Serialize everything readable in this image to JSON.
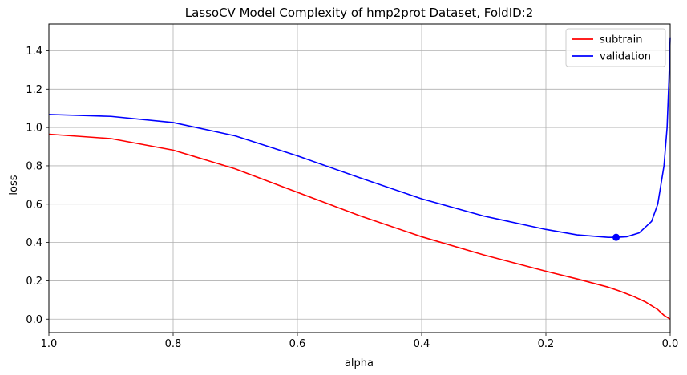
{
  "chart_data": {
    "type": "line",
    "title": "LassoCV Model Complexity of hmp2prot Dataset, FoldID:2",
    "xlabel": "alpha",
    "ylabel": "loss",
    "xlim": [
      1.0,
      0.0
    ],
    "ylim": [
      -0.07,
      1.54
    ],
    "x_inverted": true,
    "grid": true,
    "legend_position": "top-right",
    "x_ticks": [
      1.0,
      0.8,
      0.6,
      0.4,
      0.2,
      0.0
    ],
    "x_tick_labels": [
      "1.0",
      "0.8",
      "0.6",
      "0.4",
      "0.2",
      "0.0"
    ],
    "y_ticks": [
      0.0,
      0.2,
      0.4,
      0.6,
      0.8,
      1.0,
      1.2,
      1.4
    ],
    "y_tick_labels": [
      "0.0",
      "0.2",
      "0.4",
      "0.6",
      "0.8",
      "1.0",
      "1.2",
      "1.4"
    ],
    "series": [
      {
        "name": "subtrain",
        "color": "#ff0000",
        "x": [
          1.0,
          0.9,
          0.8,
          0.7,
          0.6,
          0.5,
          0.4,
          0.3,
          0.2,
          0.15,
          0.1,
          0.08,
          0.06,
          0.04,
          0.02,
          0.01,
          0.0
        ],
        "y": [
          0.965,
          0.942,
          0.882,
          0.784,
          0.662,
          0.54,
          0.43,
          0.335,
          0.25,
          0.21,
          0.167,
          0.145,
          0.12,
          0.09,
          0.05,
          0.02,
          0.0
        ]
      },
      {
        "name": "validation",
        "color": "#0000ff",
        "x": [
          1.0,
          0.9,
          0.8,
          0.7,
          0.6,
          0.5,
          0.4,
          0.3,
          0.2,
          0.15,
          0.1,
          0.087,
          0.07,
          0.05,
          0.03,
          0.02,
          0.01,
          0.005,
          0.002,
          0.0
        ],
        "y": [
          1.068,
          1.058,
          1.026,
          0.956,
          0.852,
          0.738,
          0.628,
          0.538,
          0.468,
          0.44,
          0.427,
          0.427,
          0.43,
          0.45,
          0.51,
          0.6,
          0.8,
          1.0,
          1.25,
          1.47
        ]
      }
    ],
    "marker": {
      "series": "validation",
      "x": 0.087,
      "y": 0.427,
      "color": "#0000ff"
    }
  }
}
